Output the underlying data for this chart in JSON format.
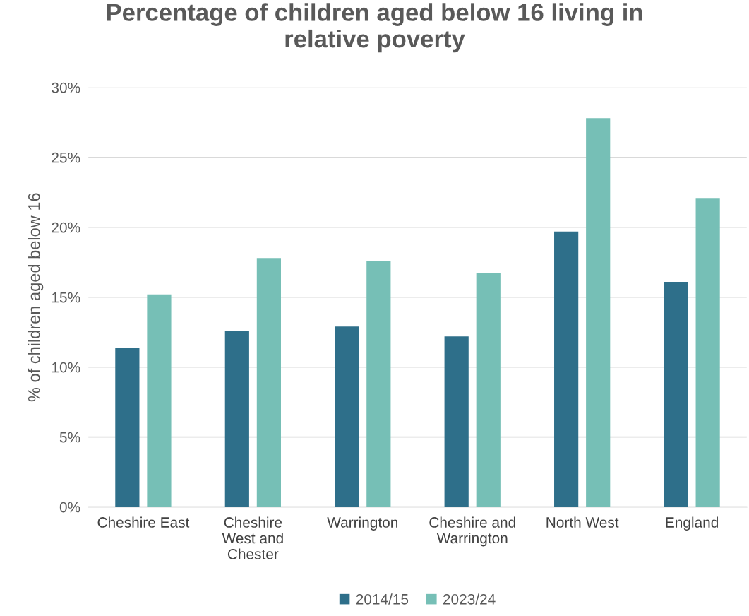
{
  "chart_data": {
    "type": "bar",
    "title": "Percentage of children aged below 16 living in\nrelative poverty",
    "ylabel": "% of children aged below 16",
    "categories": [
      "Cheshire East",
      "Cheshire\nWest and\nChester",
      "Warrington",
      "Cheshire and\nWarrington",
      "North West",
      "England"
    ],
    "series": [
      {
        "name": "2014/15",
        "color": "#2e6f8a",
        "values": [
          11.4,
          12.6,
          12.9,
          12.2,
          19.7,
          16.1
        ]
      },
      {
        "name": "2023/24",
        "color": "#76bfb6",
        "values": [
          15.2,
          17.8,
          17.6,
          16.7,
          27.8,
          22.1
        ]
      }
    ],
    "ylim": [
      0,
      30
    ],
    "yticks": [
      {
        "value": 0,
        "label": "0%"
      },
      {
        "value": 5,
        "label": "5%"
      },
      {
        "value": 10,
        "label": "10%"
      },
      {
        "value": 15,
        "label": "15%"
      },
      {
        "value": 20,
        "label": "20%"
      },
      {
        "value": 25,
        "label": "25%"
      },
      {
        "value": 30,
        "label": "30%"
      }
    ],
    "grid": "y",
    "legend": "bottom"
  }
}
